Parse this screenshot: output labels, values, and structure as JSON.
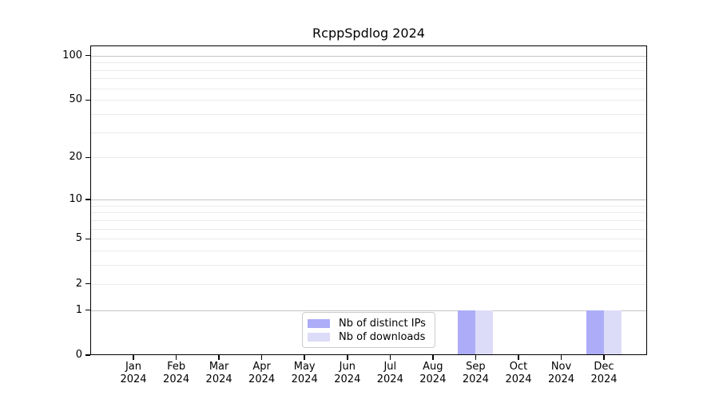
{
  "chart_data": {
    "type": "bar",
    "title": "RcppSpdlog 2024",
    "categories": [
      "Jan 2024",
      "Feb 2024",
      "Mar 2024",
      "Apr 2024",
      "May 2024",
      "Jun 2024",
      "Jul 2024",
      "Aug 2024",
      "Sep 2024",
      "Oct 2024",
      "Nov 2024",
      "Dec 2024"
    ],
    "series": [
      {
        "name": "Nb of distinct IPs",
        "color": "#acacf8",
        "values": [
          0,
          0,
          0,
          0,
          0,
          0,
          0,
          0,
          1,
          0,
          0,
          1
        ]
      },
      {
        "name": "Nb of downloads",
        "color": "#dcdcf8",
        "values": [
          0,
          0,
          0,
          0,
          0,
          0,
          0,
          0,
          1,
          0,
          0,
          1
        ]
      }
    ],
    "xlabel": "",
    "ylabel": "",
    "yscale": "log1p",
    "ylim": [
      0,
      117
    ],
    "yticks": [
      0,
      1,
      2,
      5,
      10,
      20,
      50,
      100
    ],
    "gridlines": {
      "major": [
        1,
        10,
        100
      ],
      "minor": [
        2,
        3,
        4,
        5,
        6,
        7,
        8,
        9,
        20,
        30,
        40,
        50,
        60,
        70,
        80,
        90
      ]
    },
    "grid": true,
    "legend_position": "bottom-center"
  },
  "legend": {
    "items": [
      {
        "label": "Nb of distinct IPs",
        "color": "#acacf8"
      },
      {
        "label": "Nb of downloads",
        "color": "#dcdcf8"
      }
    ]
  },
  "colors": {
    "axis": "#000000",
    "major_grid": "#c4c4c4",
    "minor_grid": "#ebebeb",
    "legend_border": "#cccccc",
    "background": "#ffffff"
  }
}
